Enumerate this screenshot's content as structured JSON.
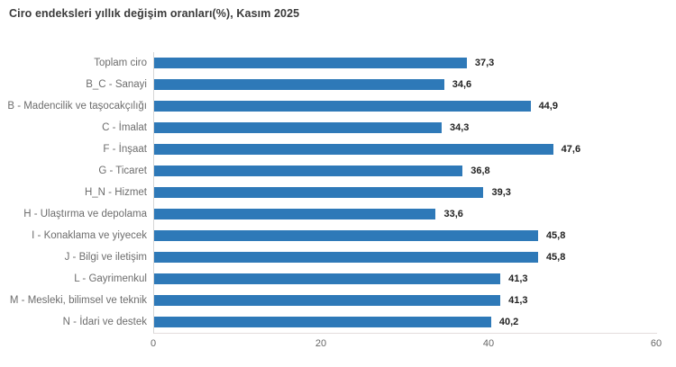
{
  "header": {
    "title": "Ciro endeksleri yıllık değişim oranları(%), Kasım 2025"
  },
  "chart_data": {
    "type": "bar",
    "orientation": "horizontal",
    "title": "Ciro endeksleri yıllık değişim oranları(%), Kasım 2025",
    "categories": [
      "Toplam ciro",
      "B_C - Sanayi",
      "B - Madencilik ve taşocakçılığı",
      "C - İmalat",
      "F - İnşaat",
      "G - Ticaret",
      "H_N - Hizmet",
      "H - Ulaştırma ve depolama",
      "I - Konaklama ve yiyecek",
      "J - Bilgi ve iletişim",
      "L - Gayrimenkul",
      "M - Mesleki, bilimsel ve teknik",
      "N - İdari ve destek"
    ],
    "values": [
      37.3,
      34.6,
      44.9,
      34.3,
      47.6,
      36.8,
      39.3,
      33.6,
      45.8,
      45.8,
      41.3,
      41.3,
      40.2
    ],
    "value_labels": [
      "37,3",
      "34,6",
      "44,9",
      "34,3",
      "47,6",
      "36,8",
      "39,3",
      "33,6",
      "45,8",
      "45,8",
      "41,3",
      "41,3",
      "40,2"
    ],
    "xlabel": "",
    "ylabel": "",
    "xlim": [
      0,
      60
    ],
    "x_ticks": [
      0,
      20,
      40,
      60
    ],
    "bar_color": "#2e79b8",
    "grid": false,
    "legend": false
  }
}
